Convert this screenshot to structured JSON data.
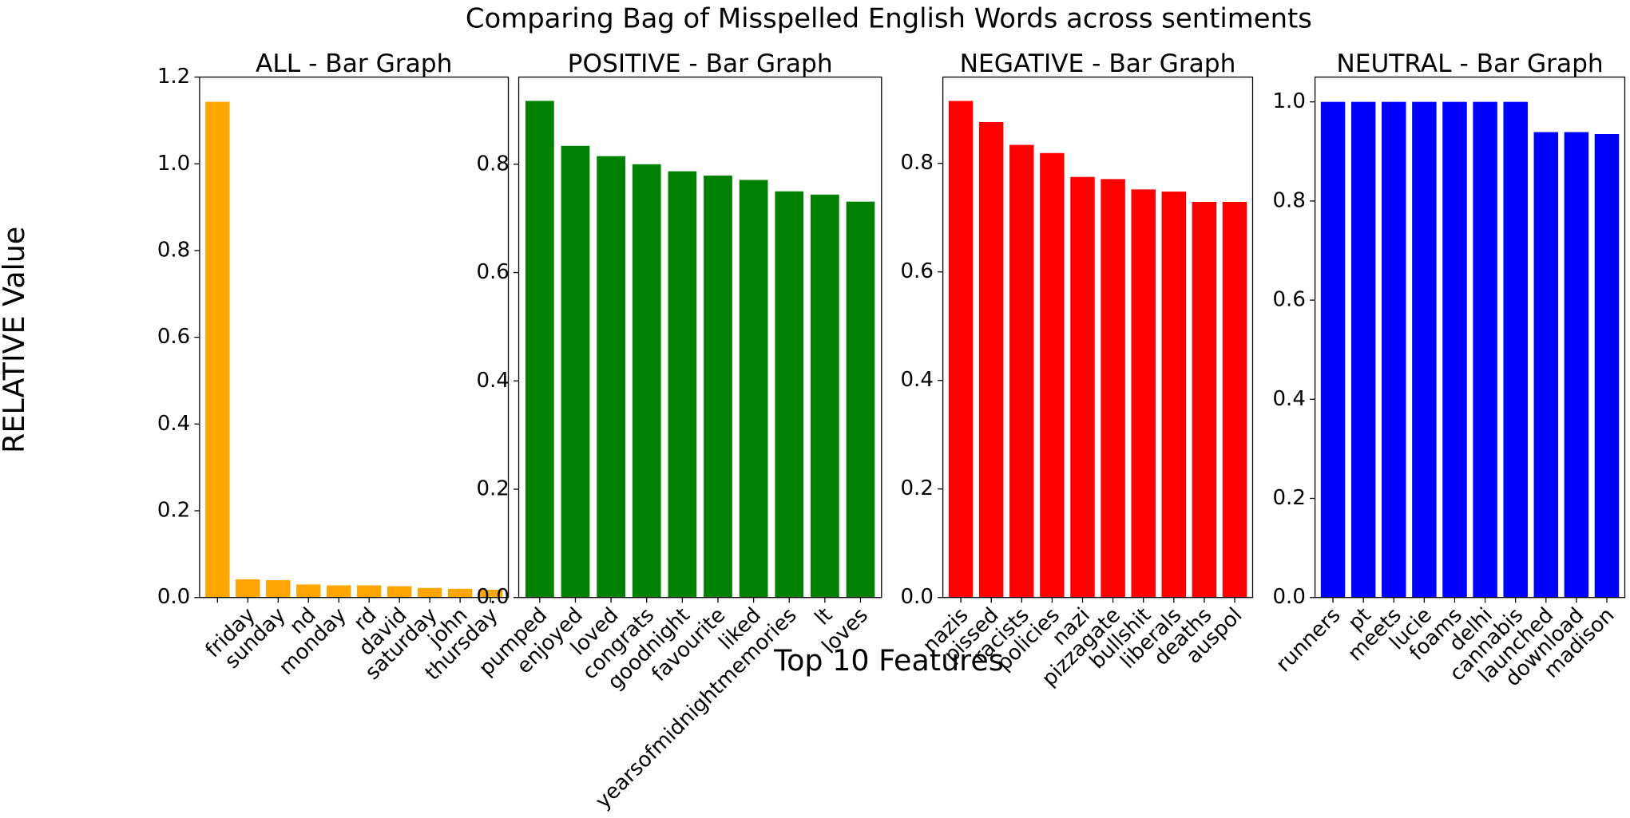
{
  "title": "Comparing Bag of Misspelled English Words across sentiments",
  "x_label": "Top 10 Features",
  "y_label": "RELATIVE Value",
  "chart_data": [
    {
      "type": "bar",
      "title": "ALL - Bar Graph",
      "categories": [
        null,
        "friday",
        "sunday",
        "nd",
        "monday",
        "rd",
        "david",
        "saturday",
        "john",
        "thursday"
      ],
      "values": [
        1.143,
        0.042,
        0.04,
        0.03,
        0.028,
        0.028,
        0.026,
        0.022,
        0.02,
        0.018
      ],
      "color": "#ffa500",
      "ylim": [
        0,
        1.2
      ],
      "yticks": [
        {
          "value": 0,
          "label": "0.0"
        },
        0.2,
        0.4,
        0.6,
        0.8,
        {
          "value": 1,
          "label": "1.0"
        },
        1.2
      ]
    },
    {
      "type": "bar",
      "title": "POSITIVE - Bar Graph",
      "categories": [
        "pumped",
        "enjoyed",
        "loved",
        "congrats",
        "goodnight",
        "favourite",
        "liked",
        "yearsofmidnightmemories",
        "lt",
        "loves"
      ],
      "values": [
        0.917,
        0.834,
        0.815,
        0.8,
        0.787,
        0.779,
        0.771,
        0.75,
        0.744,
        0.731
      ],
      "color": "#008000",
      "ylim": [
        0,
        0.961
      ],
      "yticks": [
        {
          "value": 0,
          "label": "0.0"
        },
        0.2,
        0.4,
        0.6,
        0.8
      ]
    },
    {
      "type": "bar",
      "title": "NEGATIVE - Bar Graph",
      "categories": [
        "nazis",
        "pissed",
        "racists",
        "policies",
        "nazi",
        "pizzagate",
        "bullshit",
        "liberals",
        "deaths",
        "auspol"
      ],
      "values": [
        0.915,
        0.876,
        0.834,
        0.819,
        0.775,
        0.771,
        0.752,
        0.748,
        0.729,
        0.729
      ],
      "color": "#ff0000",
      "ylim": [
        0,
        0.959
      ],
      "yticks": [
        {
          "value": 0,
          "label": "0.0"
        },
        0.2,
        0.4,
        0.6,
        0.8
      ]
    },
    {
      "type": "bar",
      "title": "NEUTRAL - Bar Graph",
      "categories": [
        "runners",
        "pt",
        "meets",
        "lucie",
        "foams",
        "delhi",
        "cannabis",
        "launched",
        "download",
        "madison"
      ],
      "values": [
        1,
        1,
        1,
        1,
        1,
        1,
        1,
        0.939,
        0.939,
        0.935
      ],
      "color": "#0000ff",
      "ylim": [
        0,
        1.05
      ],
      "yticks": [
        {
          "value": 0,
          "label": "0.0"
        },
        0.2,
        0.4,
        0.6,
        0.8,
        {
          "value": 1,
          "label": "1.0"
        }
      ]
    }
  ]
}
